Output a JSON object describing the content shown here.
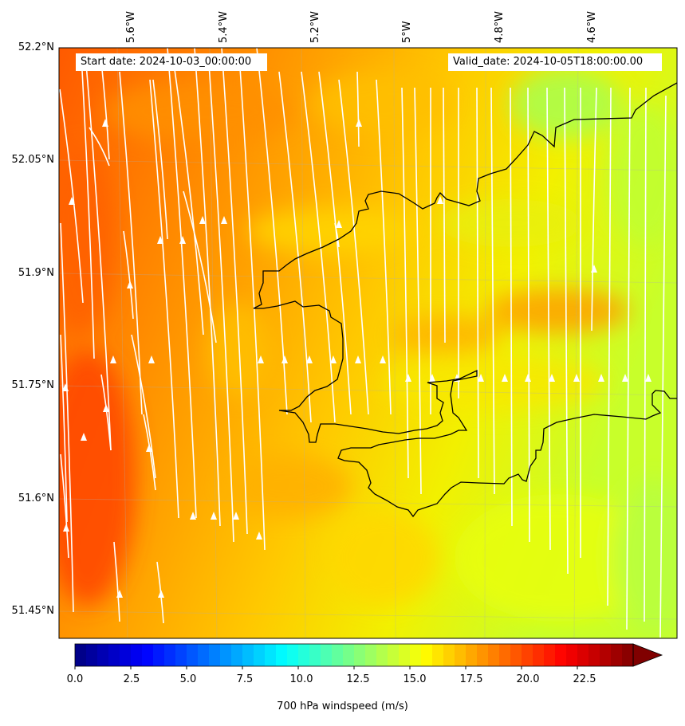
{
  "header": {
    "start_date": "Start date: 2024-10-03_00:00:00",
    "valid_date": "Valid_date: 2024-10-05T18:00:00.00"
  },
  "map": {
    "longitude_labels": [
      "5.6°W",
      "5.4°W",
      "5.2°W",
      "5°W",
      "4.8°W",
      "4.6°W"
    ],
    "latitude_labels": [
      "52.2°N",
      "52.05°N",
      "51.9°N",
      "51.75°N",
      "51.6°N",
      "51.45°N"
    ],
    "field": "700 hPa windspeed",
    "streamline_color": "#ffffff",
    "coastline_color": "#000000"
  },
  "colorbar": {
    "label": "700 hPa windspeed (m/s)",
    "ticks": [
      "0.0",
      "2.5",
      "5.0",
      "7.5",
      "10.0",
      "12.5",
      "15.0",
      "17.5",
      "20.0",
      "22.5"
    ],
    "range": [
      0,
      25
    ],
    "extend": "max",
    "colormap": "jet"
  }
}
